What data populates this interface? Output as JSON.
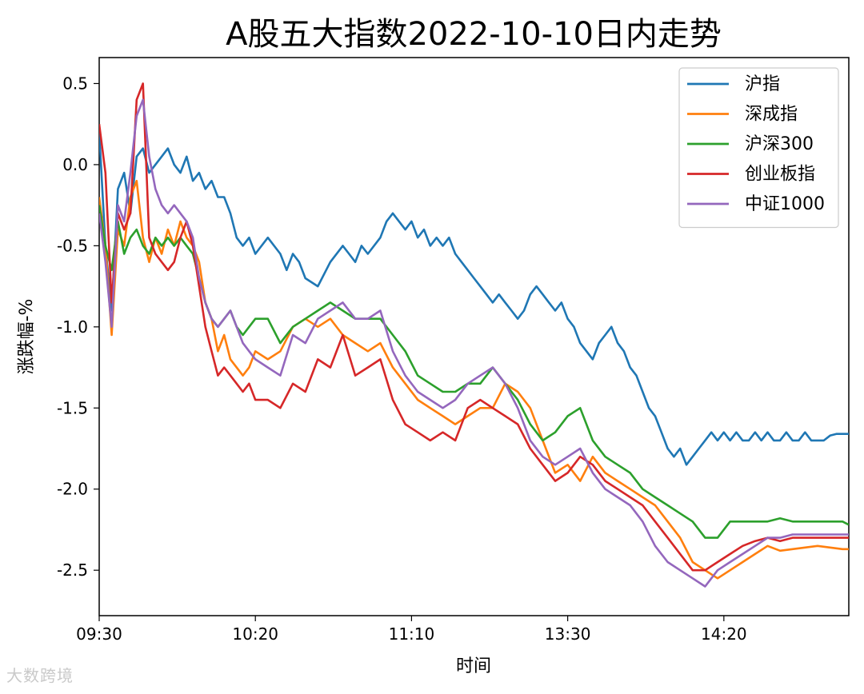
{
  "chart_data": {
    "type": "line",
    "title": "A股五大指数2022-10-10日内走势",
    "xlabel": "时间",
    "ylabel": "涨跌幅-%",
    "ylim": [
      -2.78,
      0.66
    ],
    "yticks": [
      0.5,
      0.0,
      -0.5,
      -1.0,
      -1.5,
      -2.0,
      -2.5
    ],
    "ytick_labels": [
      "0.5",
      "0.0",
      "-0.5",
      "-1.0",
      "-1.5",
      "-2.0",
      "-2.5"
    ],
    "x_minutes_range": [
      0,
      240
    ],
    "xticks": [
      0,
      50,
      100,
      150,
      200
    ],
    "xtick_labels": [
      "09:30",
      "10:20",
      "11:10",
      "13:30",
      "14:20"
    ],
    "legend_position": "top-right",
    "grid": false,
    "series": [
      {
        "name": "沪指",
        "color": "#1f77b4",
        "x": [
          0,
          2,
          4,
          6,
          8,
          10,
          12,
          14,
          16,
          18,
          20,
          22,
          24,
          26,
          28,
          30,
          32,
          34,
          36,
          38,
          40,
          42,
          44,
          46,
          48,
          50,
          54,
          58,
          60,
          62,
          64,
          66,
          70,
          74,
          78,
          80,
          82,
          84,
          86,
          90,
          92,
          94,
          96,
          98,
          100,
          102,
          104,
          106,
          108,
          110,
          112,
          114,
          116,
          118,
          120,
          122,
          124,
          126,
          128,
          130,
          132,
          134,
          136,
          138,
          140,
          142,
          144,
          146,
          148,
          150,
          152,
          154,
          156,
          158,
          160,
          162,
          164,
          166,
          168,
          170,
          172,
          174,
          176,
          178,
          180,
          182,
          184,
          186,
          188,
          190,
          192,
          194,
          196,
          198,
          200,
          202,
          204,
          206,
          208,
          210,
          212,
          214,
          216,
          218,
          220,
          222,
          224,
          226,
          228,
          230,
          232,
          234,
          236,
          238,
          240
        ],
        "values": [
          0.2,
          -0.5,
          -0.9,
          -0.15,
          -0.05,
          -0.3,
          0.05,
          0.1,
          -0.05,
          0.0,
          0.05,
          0.1,
          0.0,
          -0.05,
          0.05,
          -0.1,
          -0.05,
          -0.15,
          -0.1,
          -0.2,
          -0.2,
          -0.3,
          -0.45,
          -0.5,
          -0.45,
          -0.55,
          -0.45,
          -0.55,
          -0.65,
          -0.55,
          -0.6,
          -0.7,
          -0.75,
          -0.6,
          -0.5,
          -0.55,
          -0.6,
          -0.5,
          -0.55,
          -0.45,
          -0.35,
          -0.3,
          -0.35,
          -0.4,
          -0.35,
          -0.45,
          -0.4,
          -0.5,
          -0.45,
          -0.5,
          -0.45,
          -0.55,
          -0.6,
          -0.65,
          -0.7,
          -0.75,
          -0.8,
          -0.85,
          -0.8,
          -0.85,
          -0.9,
          -0.95,
          -0.9,
          -0.8,
          -0.75,
          -0.8,
          -0.85,
          -0.9,
          -0.85,
          -0.95,
          -1.0,
          -1.1,
          -1.15,
          -1.2,
          -1.1,
          -1.05,
          -1.0,
          -1.1,
          -1.15,
          -1.25,
          -1.3,
          -1.4,
          -1.5,
          -1.55,
          -1.65,
          -1.75,
          -1.8,
          -1.75,
          -1.85,
          -1.8,
          -1.75,
          -1.7,
          -1.65,
          -1.7,
          -1.65,
          -1.7,
          -1.65,
          -1.7,
          -1.7,
          -1.65,
          -1.7,
          -1.65,
          -1.7,
          -1.7,
          -1.65,
          -1.7,
          -1.7,
          -1.65,
          -1.7,
          -1.7,
          -1.7,
          -1.67,
          -1.66,
          -1.66,
          -1.66
        ]
      },
      {
        "name": "深成指",
        "color": "#ff7f0e",
        "x": [
          0,
          2,
          4,
          6,
          8,
          10,
          12,
          14,
          16,
          18,
          20,
          22,
          24,
          26,
          28,
          30,
          32,
          34,
          36,
          38,
          40,
          42,
          44,
          46,
          48,
          50,
          54,
          58,
          62,
          66,
          70,
          74,
          78,
          82,
          86,
          90,
          94,
          98,
          102,
          106,
          110,
          114,
          118,
          122,
          126,
          130,
          134,
          138,
          142,
          146,
          150,
          154,
          158,
          162,
          166,
          170,
          174,
          178,
          182,
          186,
          190,
          194,
          198,
          202,
          206,
          210,
          214,
          218,
          222,
          226,
          230,
          234,
          238,
          240
        ],
        "values": [
          -0.2,
          -0.5,
          -1.05,
          -0.4,
          -0.5,
          -0.2,
          -0.1,
          -0.45,
          -0.6,
          -0.45,
          -0.55,
          -0.4,
          -0.5,
          -0.35,
          -0.45,
          -0.5,
          -0.6,
          -0.85,
          -0.95,
          -1.15,
          -1.05,
          -1.2,
          -1.25,
          -1.3,
          -1.25,
          -1.15,
          -1.2,
          -1.15,
          -1.0,
          -0.95,
          -1.0,
          -0.95,
          -1.05,
          -1.1,
          -1.15,
          -1.1,
          -1.25,
          -1.35,
          -1.45,
          -1.5,
          -1.55,
          -1.6,
          -1.55,
          -1.5,
          -1.5,
          -1.35,
          -1.4,
          -1.5,
          -1.7,
          -1.9,
          -1.85,
          -1.95,
          -1.8,
          -1.9,
          -1.95,
          -2.0,
          -2.05,
          -2.1,
          -2.2,
          -2.3,
          -2.45,
          -2.5,
          -2.55,
          -2.5,
          -2.45,
          -2.4,
          -2.35,
          -2.38,
          -2.37,
          -2.36,
          -2.35,
          -2.36,
          -2.37,
          -2.37
        ]
      },
      {
        "name": "沪深300",
        "color": "#2ca02c",
        "x": [
          0,
          2,
          4,
          6,
          8,
          10,
          12,
          14,
          16,
          18,
          20,
          22,
          24,
          26,
          28,
          30,
          32,
          34,
          36,
          38,
          40,
          42,
          44,
          46,
          48,
          50,
          54,
          58,
          62,
          66,
          70,
          74,
          78,
          82,
          86,
          90,
          94,
          98,
          102,
          106,
          110,
          114,
          118,
          122,
          126,
          130,
          134,
          138,
          142,
          146,
          150,
          154,
          158,
          162,
          166,
          170,
          174,
          178,
          182,
          186,
          190,
          194,
          198,
          202,
          206,
          210,
          214,
          218,
          222,
          226,
          230,
          234,
          238,
          240
        ],
        "values": [
          -0.25,
          -0.5,
          -0.65,
          -0.35,
          -0.55,
          -0.45,
          -0.4,
          -0.5,
          -0.55,
          -0.45,
          -0.5,
          -0.45,
          -0.5,
          -0.45,
          -0.5,
          -0.55,
          -0.7,
          -0.85,
          -0.95,
          -1.0,
          -0.95,
          -0.9,
          -1.0,
          -1.05,
          -1.0,
          -0.95,
          -0.95,
          -1.1,
          -1.0,
          -0.95,
          -0.9,
          -0.85,
          -0.9,
          -0.95,
          -0.95,
          -0.95,
          -1.05,
          -1.15,
          -1.3,
          -1.35,
          -1.4,
          -1.4,
          -1.35,
          -1.35,
          -1.25,
          -1.35,
          -1.45,
          -1.6,
          -1.7,
          -1.65,
          -1.55,
          -1.5,
          -1.7,
          -1.8,
          -1.85,
          -1.9,
          -2.0,
          -2.05,
          -2.1,
          -2.15,
          -2.2,
          -2.3,
          -2.3,
          -2.2,
          -2.2,
          -2.2,
          -2.2,
          -2.18,
          -2.2,
          -2.2,
          -2.2,
          -2.2,
          -2.2,
          -2.22
        ]
      },
      {
        "name": "创业板指",
        "color": "#d62728",
        "x": [
          0,
          2,
          4,
          6,
          8,
          10,
          12,
          14,
          16,
          18,
          20,
          22,
          24,
          26,
          28,
          30,
          32,
          34,
          36,
          38,
          40,
          42,
          44,
          46,
          48,
          50,
          54,
          58,
          62,
          66,
          70,
          74,
          78,
          82,
          86,
          90,
          94,
          98,
          102,
          106,
          110,
          114,
          118,
          122,
          126,
          130,
          134,
          138,
          142,
          146,
          150,
          154,
          158,
          162,
          166,
          170,
          174,
          178,
          182,
          186,
          190,
          194,
          198,
          202,
          206,
          210,
          214,
          218,
          222,
          226,
          230,
          234,
          238,
          240
        ],
        "values": [
          0.25,
          -0.05,
          -0.85,
          -0.3,
          -0.4,
          -0.3,
          0.4,
          0.5,
          -0.45,
          -0.55,
          -0.6,
          -0.65,
          -0.6,
          -0.45,
          -0.35,
          -0.5,
          -0.75,
          -1.0,
          -1.15,
          -1.3,
          -1.25,
          -1.3,
          -1.35,
          -1.4,
          -1.35,
          -1.45,
          -1.45,
          -1.5,
          -1.35,
          -1.4,
          -1.2,
          -1.25,
          -1.05,
          -1.3,
          -1.25,
          -1.2,
          -1.45,
          -1.6,
          -1.65,
          -1.7,
          -1.65,
          -1.7,
          -1.5,
          -1.45,
          -1.5,
          -1.55,
          -1.6,
          -1.75,
          -1.85,
          -1.95,
          -1.9,
          -1.8,
          -1.85,
          -1.95,
          -2.0,
          -2.05,
          -2.1,
          -2.2,
          -2.3,
          -2.4,
          -2.5,
          -2.5,
          -2.45,
          -2.4,
          -2.35,
          -2.32,
          -2.3,
          -2.32,
          -2.3,
          -2.3,
          -2.3,
          -2.3,
          -2.3,
          -2.3
        ]
      },
      {
        "name": "中证1000",
        "color": "#9467bd",
        "x": [
          0,
          2,
          4,
          6,
          8,
          10,
          12,
          14,
          16,
          18,
          20,
          22,
          24,
          26,
          28,
          30,
          32,
          34,
          36,
          38,
          40,
          42,
          44,
          46,
          48,
          50,
          54,
          58,
          62,
          66,
          70,
          74,
          78,
          82,
          86,
          90,
          94,
          98,
          102,
          106,
          110,
          114,
          118,
          122,
          126,
          130,
          134,
          138,
          142,
          146,
          150,
          154,
          158,
          162,
          166,
          170,
          174,
          178,
          182,
          186,
          190,
          194,
          198,
          202,
          206,
          210,
          214,
          218,
          222,
          226,
          230,
          234,
          238,
          240
        ],
        "values": [
          -0.3,
          -0.6,
          -1.0,
          -0.25,
          -0.35,
          -0.05,
          0.3,
          0.4,
          0.05,
          -0.15,
          -0.25,
          -0.3,
          -0.25,
          -0.3,
          -0.35,
          -0.45,
          -0.7,
          -0.85,
          -0.95,
          -1.0,
          -0.95,
          -0.9,
          -1.0,
          -1.1,
          -1.15,
          -1.2,
          -1.25,
          -1.3,
          -1.05,
          -1.1,
          -0.95,
          -0.9,
          -0.85,
          -0.95,
          -0.95,
          -0.9,
          -1.15,
          -1.3,
          -1.4,
          -1.45,
          -1.5,
          -1.45,
          -1.35,
          -1.3,
          -1.25,
          -1.35,
          -1.5,
          -1.7,
          -1.8,
          -1.85,
          -1.8,
          -1.75,
          -1.9,
          -2.0,
          -2.05,
          -2.1,
          -2.2,
          -2.35,
          -2.45,
          -2.5,
          -2.55,
          -2.6,
          -2.5,
          -2.45,
          -2.4,
          -2.35,
          -2.3,
          -2.3,
          -2.28,
          -2.28,
          -2.28,
          -2.28,
          -2.28,
          -2.28
        ]
      }
    ]
  },
  "watermark": "大数跨境"
}
